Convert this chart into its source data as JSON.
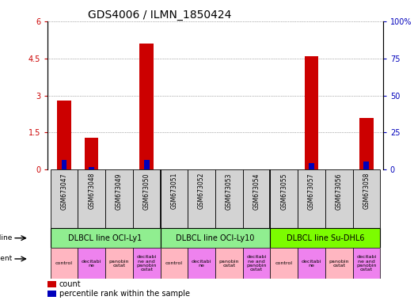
{
  "title": "GDS4006 / ILMN_1850424",
  "samples": [
    "GSM673047",
    "GSM673048",
    "GSM673049",
    "GSM673050",
    "GSM673051",
    "GSM673052",
    "GSM673053",
    "GSM673054",
    "GSM673055",
    "GSM673057",
    "GSM673056",
    "GSM673058"
  ],
  "red_values": [
    2.8,
    1.3,
    0.0,
    5.1,
    0.0,
    0.0,
    0.0,
    0.0,
    0.0,
    4.6,
    0.0,
    2.1
  ],
  "blue_values": [
    0.38,
    0.12,
    0.0,
    0.38,
    0.0,
    0.0,
    0.0,
    0.0,
    0.0,
    0.28,
    0.0,
    0.32
  ],
  "ylim": [
    0,
    6
  ],
  "y2lim": [
    0,
    100
  ],
  "yticks": [
    0,
    1.5,
    3.0,
    4.5,
    6.0
  ],
  "ytick_labels": [
    "0",
    "1.5",
    "3",
    "4.5",
    "6"
  ],
  "y2ticks": [
    0,
    25,
    50,
    75,
    100
  ],
  "y2tick_labels": [
    "0",
    "25",
    "50",
    "75",
    "100%"
  ],
  "cell_line_groups": [
    {
      "label": "DLBCL line OCI-Ly1",
      "start": 0,
      "end": 4,
      "color": "#90EE90"
    },
    {
      "label": "DLBCL line OCI-Ly10",
      "start": 4,
      "end": 8,
      "color": "#90EE90"
    },
    {
      "label": "DLBCL line Su-DHL6",
      "start": 8,
      "end": 12,
      "color": "#7CFC00"
    }
  ],
  "agent_labels": [
    "control",
    "decitabi\nne",
    "panobin\nostat",
    "decitabi\nne and\npanobin\nostat"
  ],
  "agent_colors": [
    "#FFB6C1",
    "#EE82EE",
    "#FFB6C1",
    "#EE82EE"
  ],
  "bar_width": 0.5,
  "red_color": "#CC0000",
  "blue_color": "#0000BB",
  "grid_color": "#666666",
  "bg_color": "#FFFFFF",
  "sample_bg_color": "#D3D3D3",
  "title_fontsize": 10,
  "tick_fontsize": 7,
  "sample_fontsize": 5.5,
  "cell_fontsize": 7,
  "agent_fontsize": 4.5,
  "legend_fontsize": 7
}
